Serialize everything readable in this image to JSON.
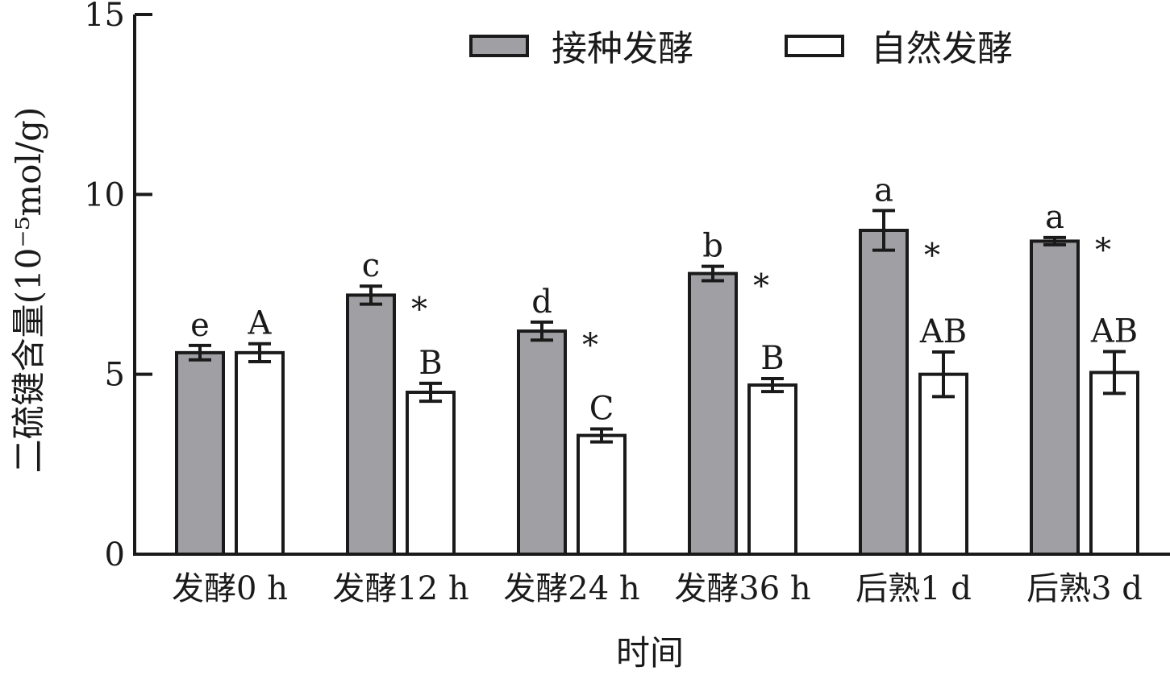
{
  "chart_data": {
    "type": "bar",
    "title": "",
    "xlabel": "时间",
    "ylabel": "二硫键含量(10⁻⁵mol/g)",
    "ylim": [
      0,
      15
    ],
    "yticks": [
      "0",
      "5",
      "10",
      "15"
    ],
    "grid": false,
    "legend_position": "top-right",
    "categories": [
      "发酵0 h",
      "发酵12 h",
      "发酵24 h",
      "发酵36 h",
      "后熟1 d",
      "后熟3 d"
    ],
    "series": [
      {
        "name": "接种发酵",
        "color": "#a0a0a4",
        "values": [
          5.6,
          7.2,
          6.2,
          7.8,
          9.0,
          8.7
        ],
        "errors": [
          0.2,
          0.25,
          0.25,
          0.2,
          0.55,
          0.1
        ],
        "letters": [
          "e",
          "c",
          "d",
          "b",
          "a",
          "a"
        ]
      },
      {
        "name": "自然发酵",
        "color": "#ffffff",
        "values": [
          5.6,
          4.5,
          3.3,
          4.7,
          5.0,
          5.05
        ],
        "errors": [
          0.25,
          0.25,
          0.18,
          0.18,
          0.62,
          0.58
        ],
        "letters": [
          "A",
          "B",
          "C",
          "B",
          "AB",
          "AB"
        ]
      }
    ],
    "significance_marks": [
      "",
      "*",
      "*",
      "*",
      "*",
      "*"
    ]
  }
}
